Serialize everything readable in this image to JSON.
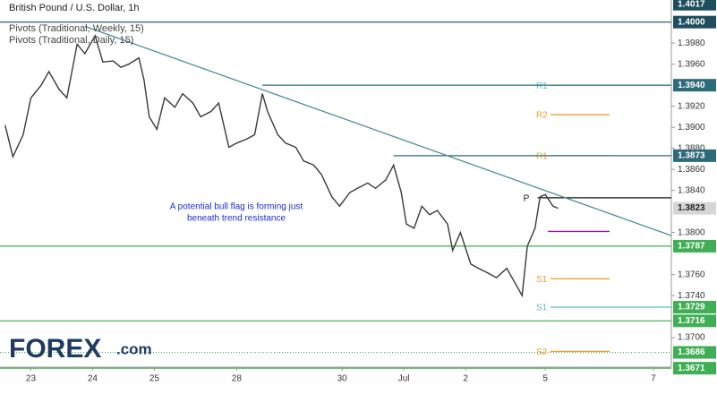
{
  "chart_data": {
    "type": "line",
    "title": "British Pound / U.S. Dollar, 1h",
    "indicators": [
      "Pivots (Traditional, Weekly, 15)",
      "Pivots (Traditional, Daily, 15)"
    ],
    "annotation": [
      "A potential bull flag is forming just",
      "beneath trend resistance"
    ],
    "logo": [
      "FOREX",
      ".com"
    ],
    "color": "#3a3a3a",
    "x": [
      2,
      5,
      9,
      12,
      16,
      19,
      23,
      26,
      30,
      33,
      37,
      40,
      44,
      47,
      50,
      54,
      56,
      58,
      61,
      64,
      68,
      71,
      75,
      78,
      82,
      85,
      89,
      92,
      96,
      99,
      102,
      104,
      108,
      111,
      115,
      118,
      122,
      125,
      129,
      132,
      136,
      139,
      143,
      146,
      150,
      153,
      156,
      158,
      161,
      164,
      167,
      170,
      174,
      176,
      179,
      183,
      186,
      190,
      193,
      197,
      200,
      203,
      205,
      208,
      210,
      212,
      215,
      217
    ],
    "values": [
      1.3902,
      1.3872,
      1.3893,
      1.3928,
      1.394,
      1.3953,
      1.3936,
      1.3928,
      1.3979,
      1.397,
      1.3987,
      1.3962,
      1.3963,
      1.3957,
      1.396,
      1.3966,
      1.3945,
      1.391,
      1.3898,
      1.3928,
      1.3919,
      1.3932,
      1.3923,
      1.391,
      1.3915,
      1.3923,
      1.3881,
      1.3885,
      1.3889,
      1.3893,
      1.3932,
      1.3915,
      1.3893,
      1.3885,
      1.3881,
      1.3868,
      1.3864,
      1.3855,
      1.3834,
      1.3825,
      1.3838,
      1.3842,
      1.3847,
      1.3842,
      1.385,
      1.3864,
      1.3838,
      1.3808,
      1.3804,
      1.3825,
      1.3817,
      1.3821,
      1.3808,
      1.3783,
      1.38,
      1.377,
      1.3766,
      1.3761,
      1.3757,
      1.3766,
      1.3753,
      1.374,
      1.3787,
      1.3804,
      1.3834,
      1.3836,
      1.3825,
      1.3823
    ],
    "xlim": [
      0,
      261
    ],
    "xticks": [
      {
        "value": 12,
        "label": "23"
      },
      {
        "value": 36,
        "label": "24"
      },
      {
        "value": 60,
        "label": "25"
      },
      {
        "value": 92,
        "label": "28"
      },
      {
        "value": 133,
        "label": "30"
      },
      {
        "value": 157,
        "label": "Jul"
      },
      {
        "value": 181,
        "label": "2"
      },
      {
        "value": 212,
        "label": "5"
      },
      {
        "value": 254,
        "label": "7"
      }
    ],
    "ylim": [
      1.3672,
      1.4021
    ],
    "yticks": [
      {
        "value": 1.37,
        "label": "1.3700"
      },
      {
        "value": 1.374,
        "label": "1.3740"
      },
      {
        "value": 1.376,
        "label": "1.3760"
      },
      {
        "value": 1.38,
        "label": "1.3800"
      },
      {
        "value": 1.384,
        "label": "1.3840"
      },
      {
        "value": 1.386,
        "label": "1.3860"
      },
      {
        "value": 1.388,
        "label": "1.3880"
      },
      {
        "value": 1.39,
        "label": "1.3900"
      },
      {
        "value": 1.392,
        "label": "1.3920"
      },
      {
        "value": 1.396,
        "label": "1.3960"
      },
      {
        "value": 1.398,
        "label": "1.3980"
      }
    ],
    "levels": [
      {
        "value": 1.4017,
        "label": "1.4017",
        "color": "#1e4e5e"
      },
      {
        "value": 1.4,
        "label": "1.4000",
        "color": "#1e4e5e",
        "from": 0
      },
      {
        "value": 1.394,
        "label": "1.3940",
        "color": "#2e6b7a",
        "from": 102
      },
      {
        "value": 1.3873,
        "label": "1.3873",
        "color": "#2e6b7a",
        "from": 153
      },
      {
        "value": 1.3823,
        "label": "1.3823",
        "color": "#d6d6d6"
      },
      {
        "value": 1.3787,
        "label": "1.3787",
        "color": "#3fae54",
        "from": 0
      },
      {
        "value": 1.3729,
        "label": "1.3729",
        "color": "#3fae54"
      },
      {
        "value": 1.3716,
        "label": "1.3716",
        "color": "#3fae54",
        "from": 0
      },
      {
        "value": 1.3686,
        "label": "1.3686",
        "color": "#3fae54",
        "from": 0,
        "dotted": true
      },
      {
        "value": 1.3671,
        "label": "1.3671",
        "color": "#3fae54",
        "from": 0
      }
    ],
    "pivots": [
      {
        "label": "R1",
        "value": 1.394,
        "color": "#5bbfc6",
        "x": [
          214,
          261
        ]
      },
      {
        "label": "R2",
        "value": 1.3912,
        "color": "#f0a030",
        "x": [
          214,
          237
        ]
      },
      {
        "label": "R1",
        "value": 1.3873,
        "color": "#f0a030",
        "x": [
          214,
          237
        ]
      },
      {
        "label": "P",
        "value": 1.3833,
        "color": "#111111",
        "x": [
          209,
          261
        ]
      },
      {
        "value": 1.3801,
        "color": "#8a1a9b",
        "x": [
          213,
          237
        ]
      },
      {
        "label": "S1",
        "value": 1.3756,
        "color": "#f0a030",
        "x": [
          214,
          237
        ]
      },
      {
        "label": "S1",
        "value": 1.3729,
        "color": "#5bbfc6",
        "x": [
          214,
          261
        ]
      },
      {
        "label": "S2",
        "value": 1.3687,
        "color": "#f0a030",
        "x": [
          214,
          237
        ]
      }
    ],
    "trendline": {
      "x": [
        33,
        261
      ],
      "y": [
        1.3996,
        1.3797
      ],
      "color": "#4f8d96"
    }
  }
}
